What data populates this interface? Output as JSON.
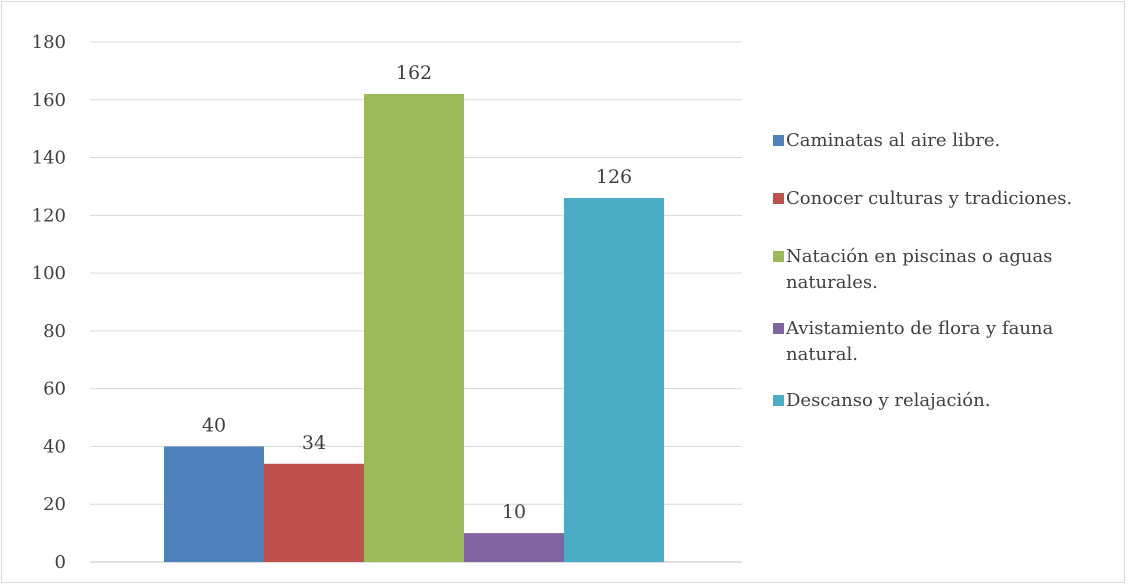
{
  "chart_data": {
    "type": "bar",
    "title": "",
    "xlabel": "",
    "ylabel": "",
    "ylim": [
      0,
      180
    ],
    "yticks": [
      0,
      20,
      40,
      60,
      80,
      100,
      120,
      140,
      160,
      180
    ],
    "grid": true,
    "legend_position": "right",
    "series": [
      {
        "name": "Caminatas al aire libre.",
        "value": 40,
        "color": "#4f81bd"
      },
      {
        "name": "Conocer culturas y tradiciones.",
        "value": 34,
        "color": "#c0504d"
      },
      {
        "name": "Natación en piscinas o aguas naturales.",
        "value": 162,
        "color": "#9bbb59"
      },
      {
        "name": "Avistamiento de flora y fauna natural.",
        "value": 10,
        "color": "#8064a2"
      },
      {
        "name": "Descanso y relajación.",
        "value": 126,
        "color": "#4bacc6"
      }
    ]
  }
}
